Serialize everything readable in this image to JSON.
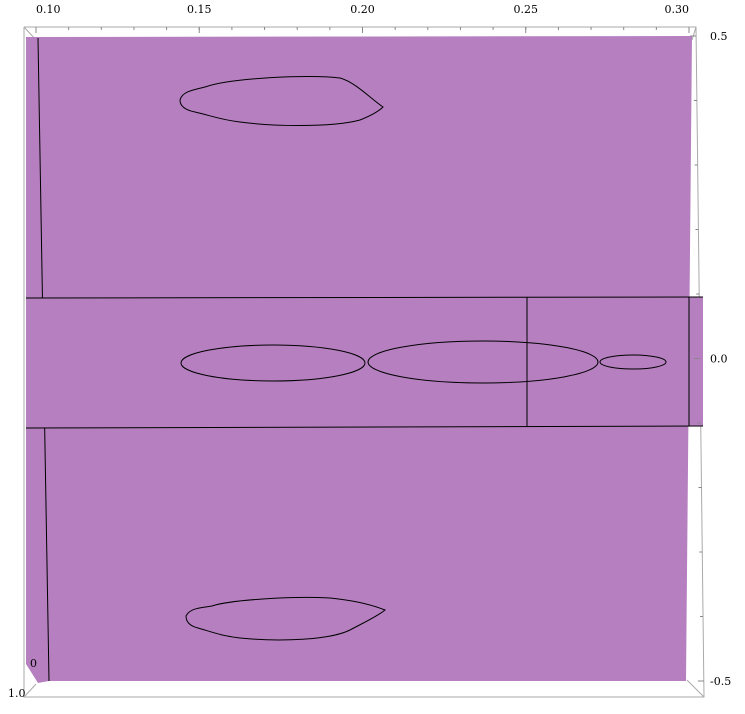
{
  "chart_data": {
    "type": "surface3d",
    "title": "",
    "xlabel": "",
    "ylabel": "",
    "surface_color": "#b57fc0",
    "x_ticks": [
      0.1,
      0.15,
      0.2,
      0.25,
      0.3
    ],
    "x_tick_labels": [
      "0.10",
      "0.15",
      "0.20",
      "0.25",
      "0.30"
    ],
    "y_ticks": [
      0.5,
      0.0,
      -0.5
    ],
    "y_tick_labels": [
      "0.5",
      "0.0",
      "-0.5"
    ],
    "xlim": [
      0.1,
      0.3
    ],
    "ylim": [
      -0.5,
      0.5
    ],
    "z_corner_labels": [
      "0",
      "1.0"
    ],
    "contours": [
      {
        "name": "upper-lobe",
        "x_range": [
          0.145,
          0.205
        ],
        "y_center": 0.4
      },
      {
        "name": "middle-ellipse-1",
        "x_range": [
          0.145,
          0.2
        ],
        "y_center": 0.0
      },
      {
        "name": "middle-ellipse-2",
        "x_range": [
          0.2,
          0.27
        ],
        "y_center": 0.0
      },
      {
        "name": "middle-ellipse-3",
        "x_range": [
          0.272,
          0.292
        ],
        "y_center": 0.0
      },
      {
        "name": "lower-lobe",
        "x_range": [
          0.147,
          0.205
        ],
        "y_center": -0.4
      }
    ]
  }
}
